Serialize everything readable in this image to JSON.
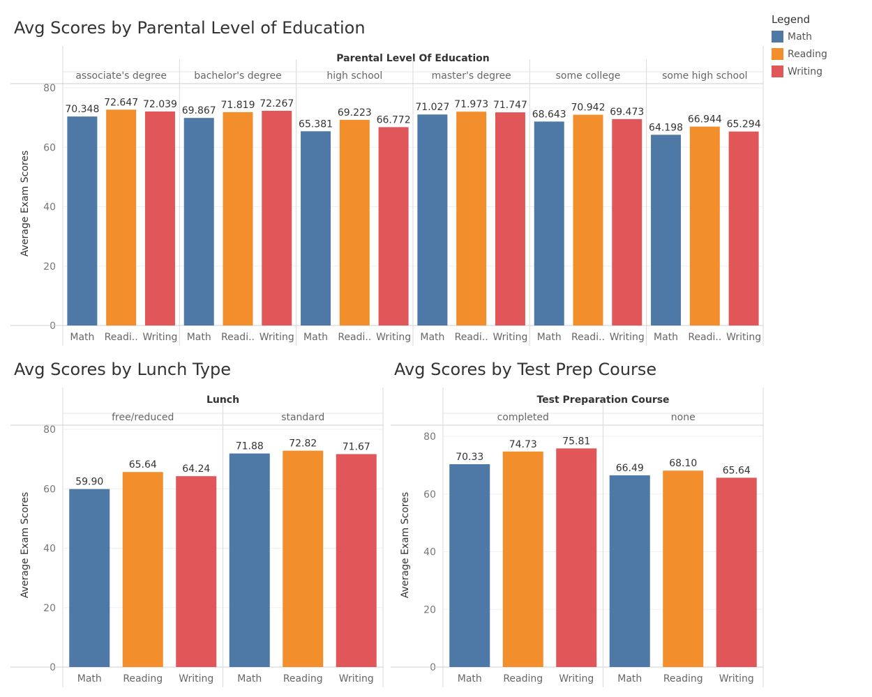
{
  "titles": {
    "parental": "Avg Scores by Parental Level of Education",
    "lunch": "Avg Scores by Lunch Type",
    "prep": "Avg Scores by Test Prep Course"
  },
  "legend": {
    "title": "Legend",
    "items": [
      {
        "label": "Math",
        "color": "#4e79a7"
      },
      {
        "label": "Reading",
        "color": "#f28e2b"
      },
      {
        "label": "Writing",
        "color": "#e15759"
      }
    ]
  },
  "chart_data": [
    {
      "type": "bar",
      "title": "Avg Scores by Parental Level of Education",
      "facet_label": "Parental Level Of Education",
      "ylabel": "Average Exam Scores",
      "ylim": [
        0,
        80
      ],
      "yticks": [
        "0",
        "20",
        "40",
        "60",
        "80"
      ],
      "categories": [
        "Math",
        "Readi..",
        "Writing"
      ],
      "groups": [
        {
          "name": "associate's degree",
          "values": [
            70.348,
            72.647,
            72.039
          ],
          "labels": [
            "70.348",
            "72.647",
            "72.039"
          ]
        },
        {
          "name": "bachelor's degree",
          "values": [
            69.867,
            71.819,
            72.267
          ],
          "labels": [
            "69.867",
            "71.819",
            "72.267"
          ]
        },
        {
          "name": "high school",
          "values": [
            65.381,
            69.223,
            66.772
          ],
          "labels": [
            "65.381",
            "69.223",
            "66.772"
          ]
        },
        {
          "name": "master's degree",
          "values": [
            71.027,
            71.973,
            71.747
          ],
          "labels": [
            "71.027",
            "71.973",
            "71.747"
          ]
        },
        {
          "name": "some college",
          "values": [
            68.643,
            70.942,
            69.473
          ],
          "labels": [
            "68.643",
            "70.942",
            "69.473"
          ]
        },
        {
          "name": "some high school",
          "values": [
            64.198,
            66.944,
            65.294
          ],
          "labels": [
            "64.198",
            "66.944",
            "65.294"
          ]
        }
      ],
      "colors": [
        "#4e79a7",
        "#f28e2b",
        "#e15759"
      ]
    },
    {
      "type": "bar",
      "title": "Avg Scores by Lunch Type",
      "facet_label": "Lunch",
      "ylabel": "Average Exam Scores",
      "ylim": [
        0,
        80
      ],
      "yticks": [
        "0",
        "20",
        "40",
        "60",
        "80"
      ],
      "categories": [
        "Math",
        "Reading",
        "Writing"
      ],
      "groups": [
        {
          "name": "free/reduced",
          "values": [
            59.9,
            65.64,
            64.24
          ],
          "labels": [
            "59.90",
            "65.64",
            "64.24"
          ]
        },
        {
          "name": "standard",
          "values": [
            71.88,
            72.82,
            71.67
          ],
          "labels": [
            "71.88",
            "72.82",
            "71.67"
          ]
        }
      ],
      "colors": [
        "#4e79a7",
        "#f28e2b",
        "#e15759"
      ]
    },
    {
      "type": "bar",
      "title": "Avg Scores by Test Prep Course",
      "facet_label": "Test Preparation Course",
      "ylabel": "Average Exam Scores",
      "ylim": [
        0,
        80
      ],
      "yticks": [
        "0",
        "20",
        "40",
        "60",
        "80"
      ],
      "categories": [
        "Math",
        "Reading",
        "Writing"
      ],
      "groups": [
        {
          "name": "completed",
          "values": [
            70.33,
            74.73,
            75.81
          ],
          "labels": [
            "70.33",
            "74.73",
            "75.81"
          ]
        },
        {
          "name": "none",
          "values": [
            66.49,
            68.1,
            65.64
          ],
          "labels": [
            "66.49",
            "68.10",
            "65.64"
          ]
        }
      ],
      "colors": [
        "#4e79a7",
        "#f28e2b",
        "#e15759"
      ]
    }
  ]
}
